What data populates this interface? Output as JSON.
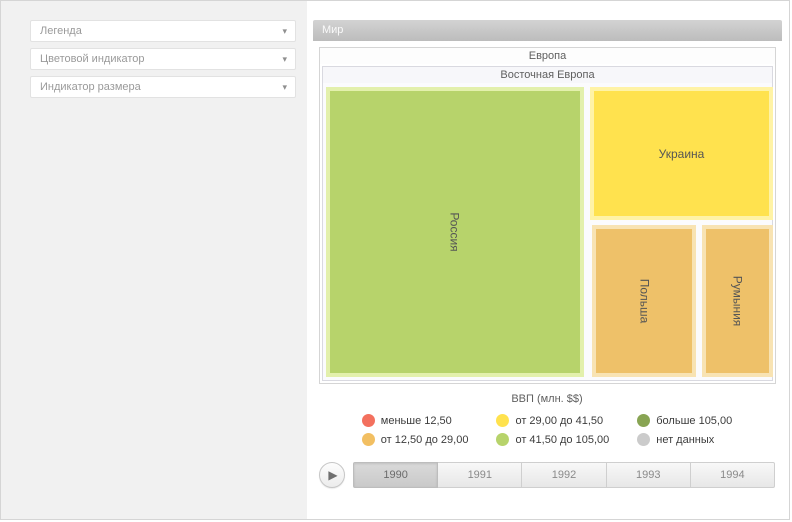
{
  "chart_data": {
    "type": "treemap",
    "title": "Мир",
    "hierarchy_path": [
      "Мир",
      "Европа",
      "Восточная Европа"
    ],
    "nodes": [
      {
        "name": "Россия",
        "area_share_pct": 61,
        "color_bin": "от 41,50 до 105,00"
      },
      {
        "name": "Украина",
        "area_share_pct": 19,
        "color_bin": "от 29,00 до 41,50"
      },
      {
        "name": "Польша",
        "area_share_pct": 12,
        "color_bin": "от 12,50 до 29,00"
      },
      {
        "name": "Румыния",
        "area_share_pct": 8,
        "color_bin": "от 12,50 до 29,00"
      }
    ],
    "legend_title": "ВВП (млн. $$)",
    "legend_bins": [
      {
        "label": "меньше 12,50",
        "color": "#f3705e"
      },
      {
        "label": "от 12,50 до 29,00",
        "color": "#f2bf62"
      },
      {
        "label": "от 29,00 до 41,50",
        "color": "#ffe24e"
      },
      {
        "label": "от 41,50 до 105,00",
        "color": "#b7d36b"
      },
      {
        "label": "больше 105,00",
        "color": "#88a453"
      },
      {
        "label": "нет данных",
        "color": "#cbcbcb"
      }
    ],
    "timeline_years": [
      "1990",
      "1991",
      "1992",
      "1993",
      "1994"
    ],
    "selected_year": "1990"
  },
  "icons": {
    "chevron": "▾",
    "play": "▶"
  },
  "sidebar": {
    "items": [
      {
        "label": "Легенда"
      },
      {
        "label": "Цветовой индикатор"
      },
      {
        "label": "Индикатор размера"
      }
    ]
  },
  "treemap": {
    "root_title": "Мир",
    "group_title": "Европа",
    "subgroup_title": "Восточная Европа",
    "cells": [
      {
        "name": "Россия",
        "fill": "#b7d36b",
        "glow": "#e3f0ac"
      },
      {
        "name": "Украина",
        "fill": "#ffe24e",
        "glow": "#fff3a6"
      },
      {
        "name": "Польша",
        "fill": "#eec169",
        "glow": "#f8e3b3"
      },
      {
        "name": "Румыния",
        "fill": "#eec169",
        "glow": "#f8e3b3"
      }
    ]
  },
  "legend": {
    "title": "ВВП (млн. $$)",
    "items": [
      {
        "label": "меньше 12,50",
        "color": "#f3705e"
      },
      {
        "label": "от 29,00 до 41,50",
        "color": "#ffe24e"
      },
      {
        "label": "больше 105,00",
        "color": "#88a453"
      },
      {
        "label": "от 12,50 до 29,00",
        "color": "#f2bf62"
      },
      {
        "label": "от 41,50 до 105,00",
        "color": "#b7d36b"
      },
      {
        "label": "нет данных",
        "color": "#cbcbcb"
      }
    ]
  },
  "timeline": {
    "years": [
      "1990",
      "1991",
      "1992",
      "1993",
      "1994"
    ],
    "selected_year": "1990"
  }
}
